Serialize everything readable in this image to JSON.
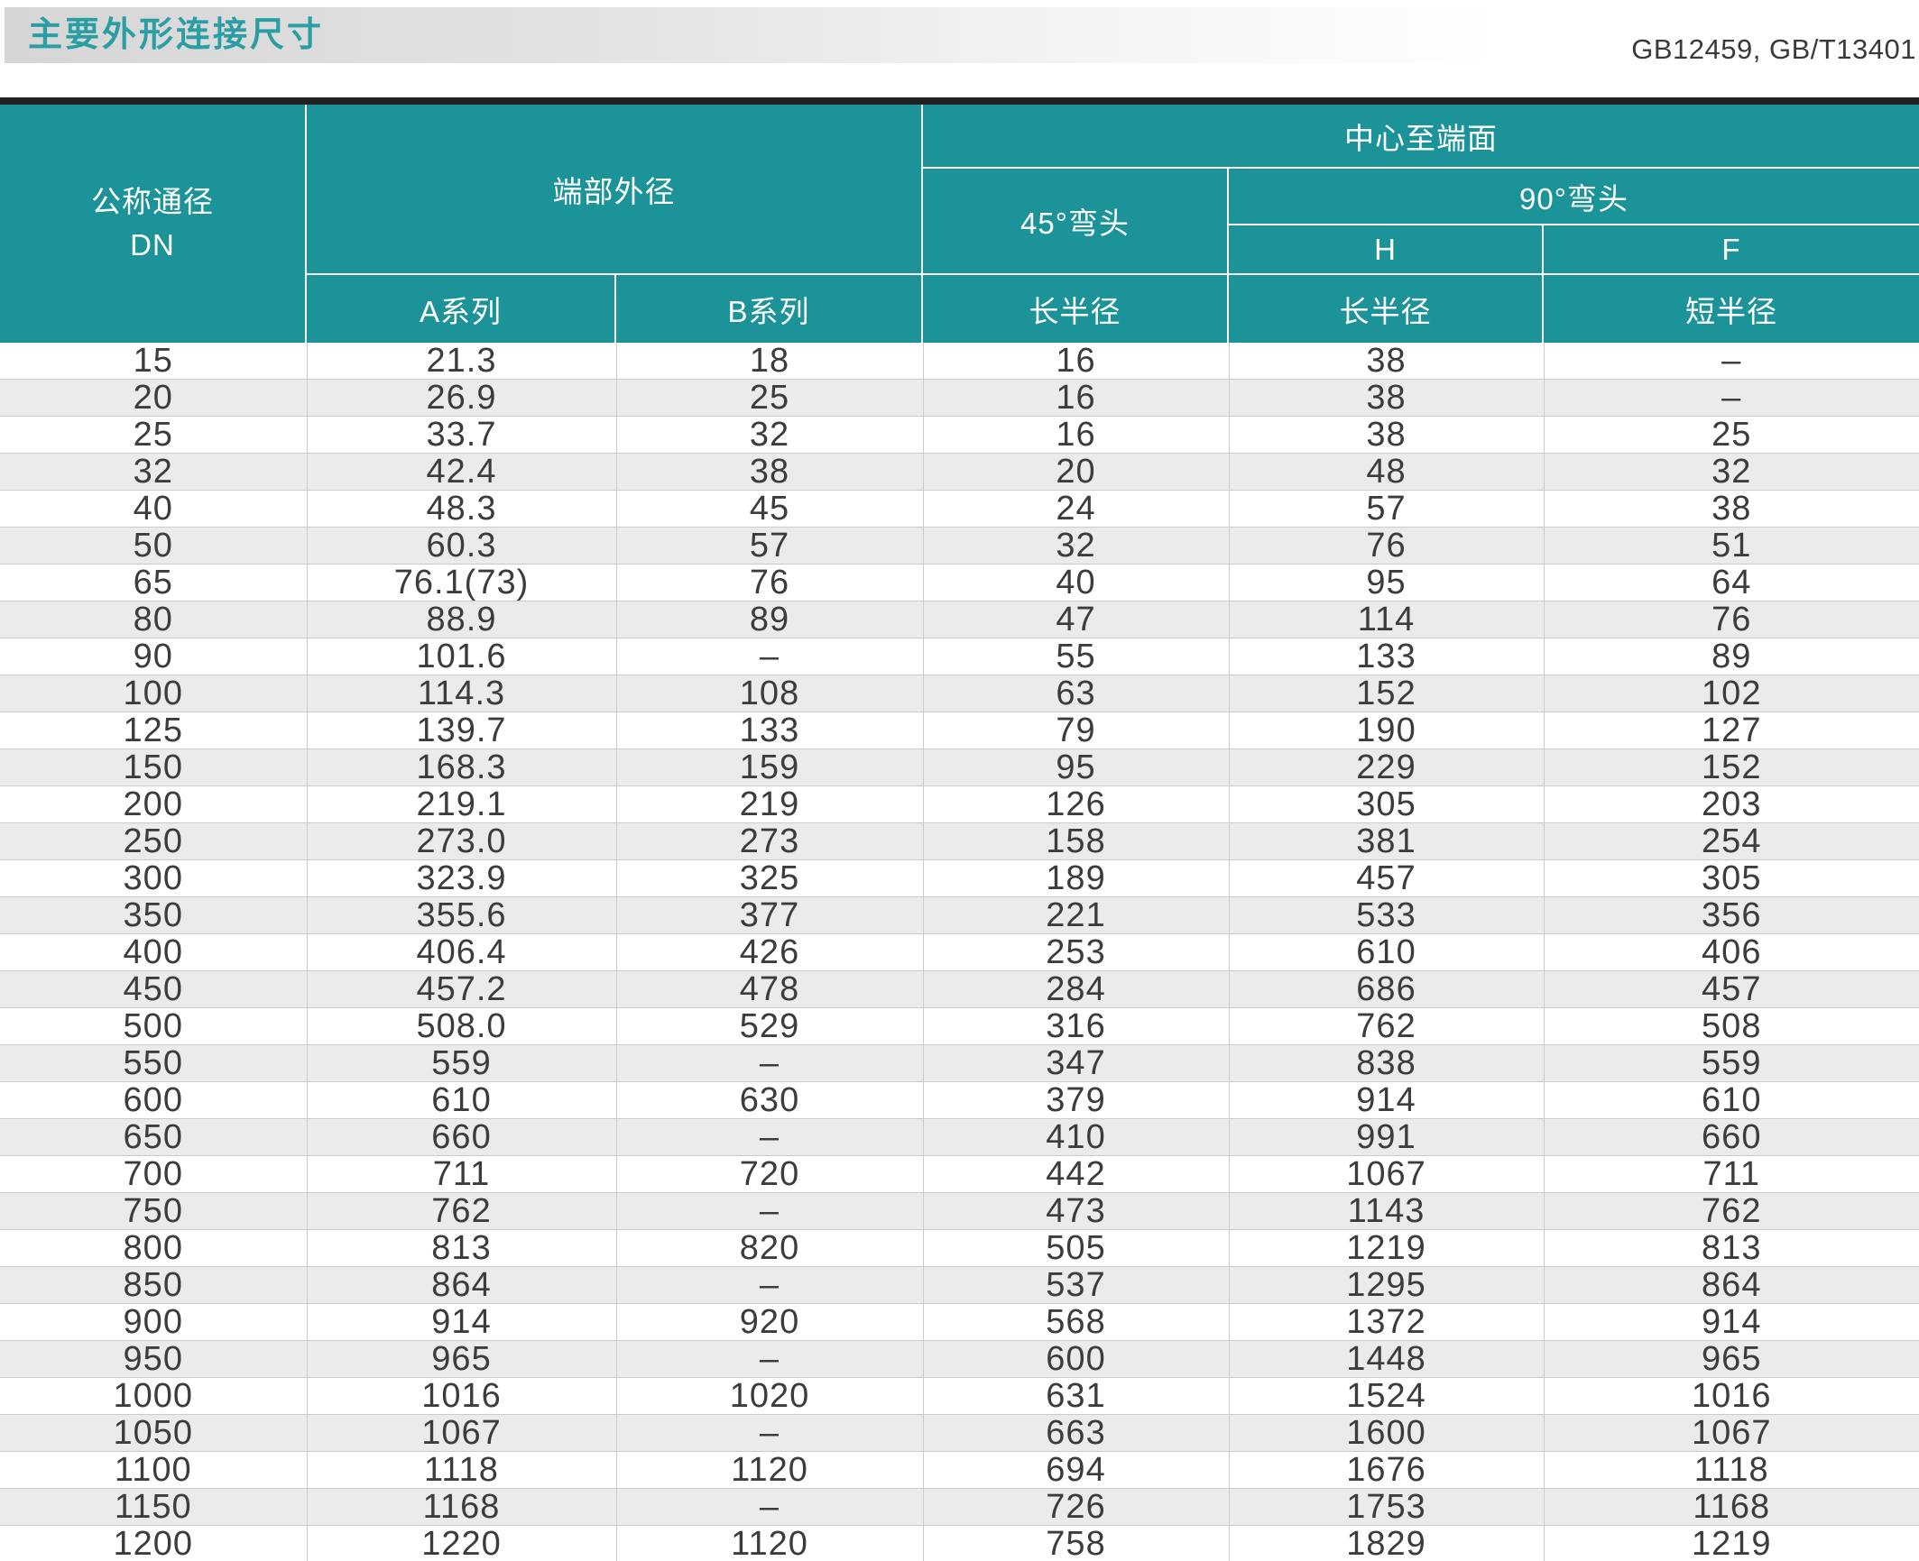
{
  "page": {
    "title": "主要外形连接尺寸",
    "standards": "GB12459, GB/T13401"
  },
  "colors": {
    "header_teal": "#1b9399",
    "title_teal": "#2a9ea3",
    "rule_dark": "#202020",
    "row_stripe": "#ebebeb",
    "grid_line": "#cbcbcb"
  },
  "table": {
    "header": {
      "dn_line1": "公称通径",
      "dn_line2": "DN",
      "end_outer_diameter": "端部外径",
      "center_to_end": "中心至端面",
      "elbow_45": "45°弯头",
      "elbow_90": "90°弯头",
      "h_label": "H",
      "f_label": "F",
      "series_a": "A系列",
      "series_b": "B系列",
      "long_radius_45": "长半径",
      "long_radius_90h": "长半径",
      "short_radius_90f": "短半径"
    },
    "rows": [
      [
        "15",
        "21.3",
        "18",
        "16",
        "38",
        "–"
      ],
      [
        "20",
        "26.9",
        "25",
        "16",
        "38",
        "–"
      ],
      [
        "25",
        "33.7",
        "32",
        "16",
        "38",
        "25"
      ],
      [
        "32",
        "42.4",
        "38",
        "20",
        "48",
        "32"
      ],
      [
        "40",
        "48.3",
        "45",
        "24",
        "57",
        "38"
      ],
      [
        "50",
        "60.3",
        "57",
        "32",
        "76",
        "51"
      ],
      [
        "65",
        "76.1(73)",
        "76",
        "40",
        "95",
        "64"
      ],
      [
        "80",
        "88.9",
        "89",
        "47",
        "114",
        "76"
      ],
      [
        "90",
        "101.6",
        "–",
        "55",
        "133",
        "89"
      ],
      [
        "100",
        "114.3",
        "108",
        "63",
        "152",
        "102"
      ],
      [
        "125",
        "139.7",
        "133",
        "79",
        "190",
        "127"
      ],
      [
        "150",
        "168.3",
        "159",
        "95",
        "229",
        "152"
      ],
      [
        "200",
        "219.1",
        "219",
        "126",
        "305",
        "203"
      ],
      [
        "250",
        "273.0",
        "273",
        "158",
        "381",
        "254"
      ],
      [
        "300",
        "323.9",
        "325",
        "189",
        "457",
        "305"
      ],
      [
        "350",
        "355.6",
        "377",
        "221",
        "533",
        "356"
      ],
      [
        "400",
        "406.4",
        "426",
        "253",
        "610",
        "406"
      ],
      [
        "450",
        "457.2",
        "478",
        "284",
        "686",
        "457"
      ],
      [
        "500",
        "508.0",
        "529",
        "316",
        "762",
        "508"
      ],
      [
        "550",
        "559",
        "–",
        "347",
        "838",
        "559"
      ],
      [
        "600",
        "610",
        "630",
        "379",
        "914",
        "610"
      ],
      [
        "650",
        "660",
        "–",
        "410",
        "991",
        "660"
      ],
      [
        "700",
        "711",
        "720",
        "442",
        "1067",
        "711"
      ],
      [
        "750",
        "762",
        "–",
        "473",
        "1143",
        "762"
      ],
      [
        "800",
        "813",
        "820",
        "505",
        "1219",
        "813"
      ],
      [
        "850",
        "864",
        "–",
        "537",
        "1295",
        "864"
      ],
      [
        "900",
        "914",
        "920",
        "568",
        "1372",
        "914"
      ],
      [
        "950",
        "965",
        "–",
        "600",
        "1448",
        "965"
      ],
      [
        "1000",
        "1016",
        "1020",
        "631",
        "1524",
        "1016"
      ],
      [
        "1050",
        "1067",
        "–",
        "663",
        "1600",
        "1067"
      ],
      [
        "1100",
        "1118",
        "1120",
        "694",
        "1676",
        "1118"
      ],
      [
        "1150",
        "1168",
        "–",
        "726",
        "1753",
        "1168"
      ],
      [
        "1200",
        "1220",
        "1120",
        "758",
        "1829",
        "1219"
      ]
    ]
  }
}
